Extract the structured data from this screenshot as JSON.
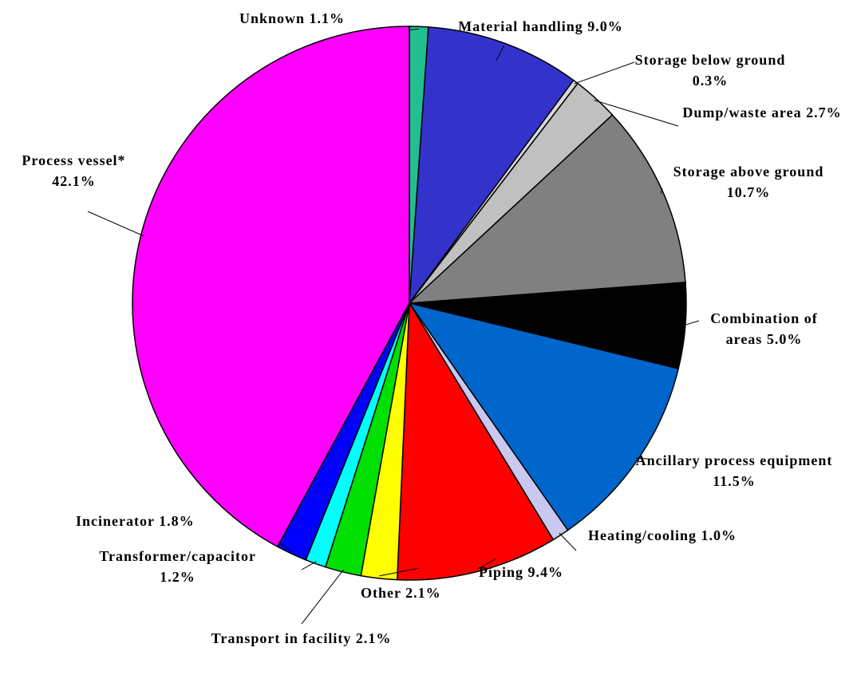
{
  "chart_data": {
    "type": "pie",
    "categories": [
      "Unknown",
      "Material handling",
      "Storage below ground",
      "Dump/waste area",
      "Storage above ground",
      "Combination of areas",
      "Ancillary process equipment",
      "Heating/cooling",
      "Piping",
      "Other",
      "Transport in facility",
      "Transformer/capacitor",
      "Incinerator",
      "Process vessel*"
    ],
    "values": [
      1.1,
      9.0,
      0.3,
      2.7,
      10.7,
      5.0,
      11.5,
      1.0,
      9.4,
      2.1,
      2.1,
      1.2,
      1.8,
      42.1
    ],
    "value_labels": [
      "1.1%",
      "9.0%",
      "0.3%",
      "2.7%",
      "10.7%",
      "5.0%",
      "11.5%",
      "1.0%",
      "9.4%",
      "2.1%",
      "2.1%",
      "1.2%",
      "1.8%",
      "42.1%"
    ],
    "colors": [
      "#1fbf8f",
      "#3333cc",
      "#d8d8d8",
      "#c0c0c0",
      "#808080",
      "#000000",
      "#0066cc",
      "#c8c8f0",
      "#ff0000",
      "#ffff00",
      "#00e000",
      "#00ffff",
      "#0000ff",
      "#ff00ff"
    ]
  }
}
